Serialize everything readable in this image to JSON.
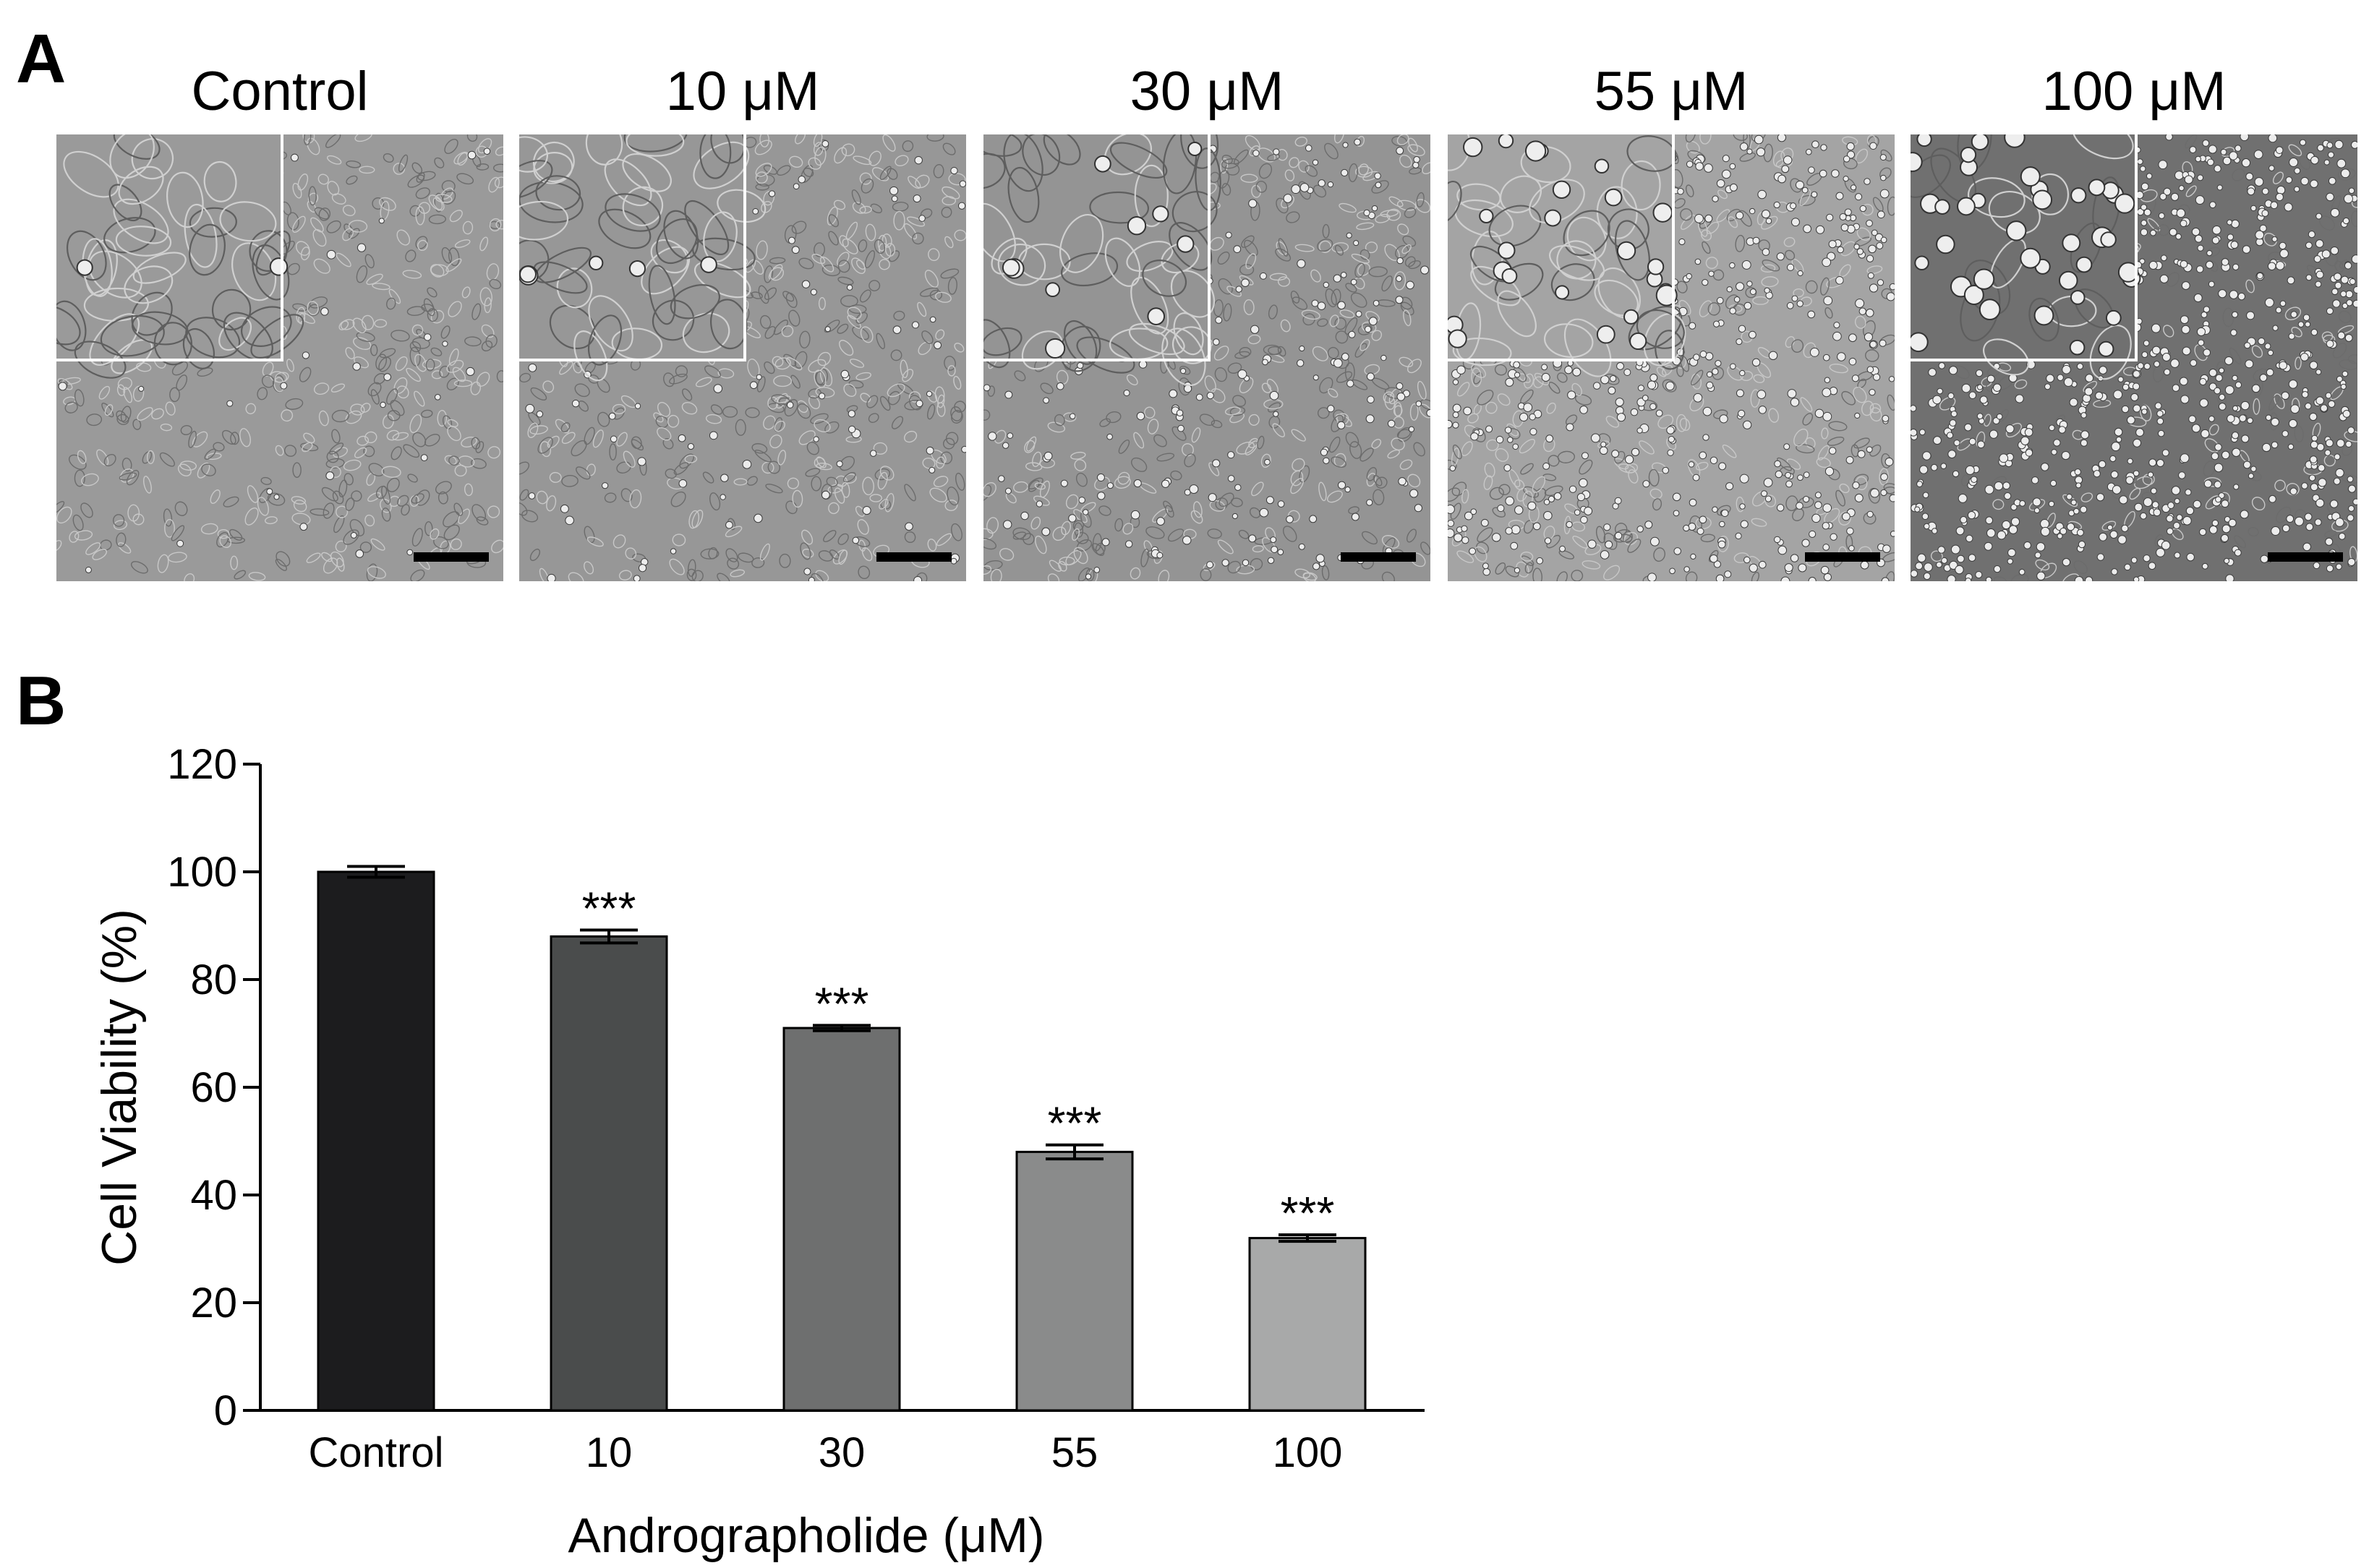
{
  "panel_labels": {
    "a": "A",
    "b": "B"
  },
  "micrographs": {
    "titles": [
      "Control",
      "10 μM",
      "30 μM",
      "55 μM",
      "100 μM"
    ],
    "backgrounds": [
      "#9a9a9a",
      "#979797",
      "#949494",
      "#a4a4a4",
      "#707070"
    ],
    "cell_density": [
      1.0,
      0.97,
      0.9,
      0.75,
      0.35
    ],
    "rounded_cell_density": [
      0.05,
      0.12,
      0.25,
      0.6,
      1.0
    ]
  },
  "chart_data": {
    "type": "bar",
    "title": "",
    "xlabel": "Andrographolide (μM)",
    "ylabel": "Cell Viability (%)",
    "categories": [
      "Control",
      "10",
      "30",
      "55",
      "100"
    ],
    "values": [
      100,
      88,
      71,
      48,
      32
    ],
    "errors": [
      1.0,
      1.2,
      0.5,
      1.3,
      0.6
    ],
    "annotations": [
      "",
      "***",
      "***",
      "***",
      "***"
    ],
    "bar_colors": [
      "#1c1c1e",
      "#4a4c4c",
      "#6e6f6f",
      "#8a8b8b",
      "#a8a9a9"
    ],
    "ylim": [
      0,
      120
    ],
    "yticks": [
      0,
      20,
      40,
      60,
      80,
      100,
      120
    ],
    "grid": false,
    "legend": "none"
  }
}
